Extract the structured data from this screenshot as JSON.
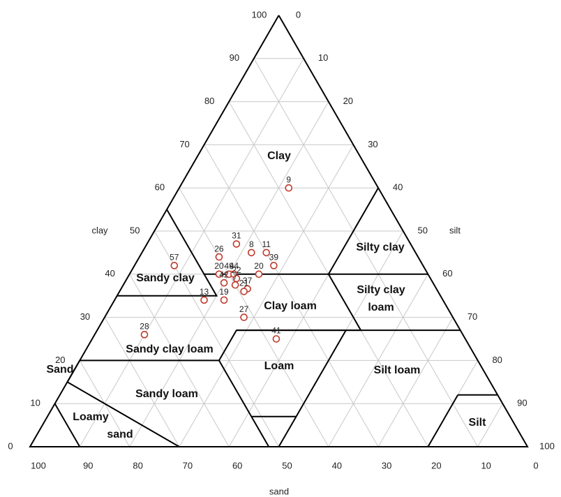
{
  "chart_data": {
    "type": "ternary",
    "axis_labels": {
      "clay": "clay",
      "silt": "silt",
      "sand": "sand"
    },
    "clay_ticks": [
      0,
      10,
      20,
      30,
      40,
      50,
      60,
      70,
      80,
      90,
      100
    ],
    "silt_ticks": [
      0,
      10,
      20,
      30,
      40,
      50,
      60,
      70,
      80,
      90,
      100
    ],
    "sand_ticks": [
      100,
      90,
      80,
      70,
      60,
      50,
      40,
      30,
      20,
      10,
      0
    ],
    "grid": true,
    "point_color": "#c0392b",
    "regions": [
      {
        "lines": [
          "Clay"
        ]
      },
      {
        "lines": [
          "Sandy clay"
        ]
      },
      {
        "lines": [
          "Silty clay"
        ]
      },
      {
        "lines": [
          "Silty clay",
          "loam"
        ]
      },
      {
        "lines": [
          "Clay loam"
        ]
      },
      {
        "lines": [
          "Sandy clay loam"
        ]
      },
      {
        "lines": [
          "Loam"
        ]
      },
      {
        "lines": [
          "Silt loam"
        ]
      },
      {
        "lines": [
          "Sand"
        ]
      },
      {
        "lines": [
          "Sandy loam"
        ]
      },
      {
        "lines": [
          "Loamy",
          "sand"
        ]
      },
      {
        "lines": [
          "Silt"
        ]
      }
    ],
    "points": [
      {
        "label": "9",
        "clay": 60,
        "sand": 18
      },
      {
        "label": "31",
        "clay": 47,
        "sand": 35
      },
      {
        "label": "8",
        "clay": 45,
        "sand": 33
      },
      {
        "label": "11",
        "clay": 45,
        "sand": 30
      },
      {
        "label": "39",
        "clay": 42,
        "sand": 30
      },
      {
        "label": "26",
        "clay": 44,
        "sand": 40
      },
      {
        "label": "57",
        "clay": 42,
        "sand": 50
      },
      {
        "label": "20",
        "clay": 40,
        "sand": 42
      },
      {
        "label": "49",
        "clay": 40,
        "sand": 40
      },
      {
        "label": "44",
        "clay": 40,
        "sand": 39
      },
      {
        "label": "20",
        "clay": 40,
        "sand": 34
      },
      {
        "label": "22",
        "clay": 39,
        "sand": 39
      },
      {
        "label": "42",
        "clay": 38,
        "sand": 42
      },
      {
        "label": "7",
        "clay": 37.5,
        "sand": 40
      },
      {
        "label": "37",
        "clay": 36.6,
        "sand": 38
      },
      {
        "label": "21",
        "clay": 36,
        "sand": 39
      },
      {
        "label": "13",
        "clay": 34,
        "sand": 48
      },
      {
        "label": "19",
        "clay": 34,
        "sand": 44
      },
      {
        "label": "27",
        "clay": 30,
        "sand": 42
      },
      {
        "label": "28",
        "clay": 26,
        "sand": 64
      },
      {
        "label": "41",
        "clay": 25,
        "sand": 38
      }
    ]
  }
}
